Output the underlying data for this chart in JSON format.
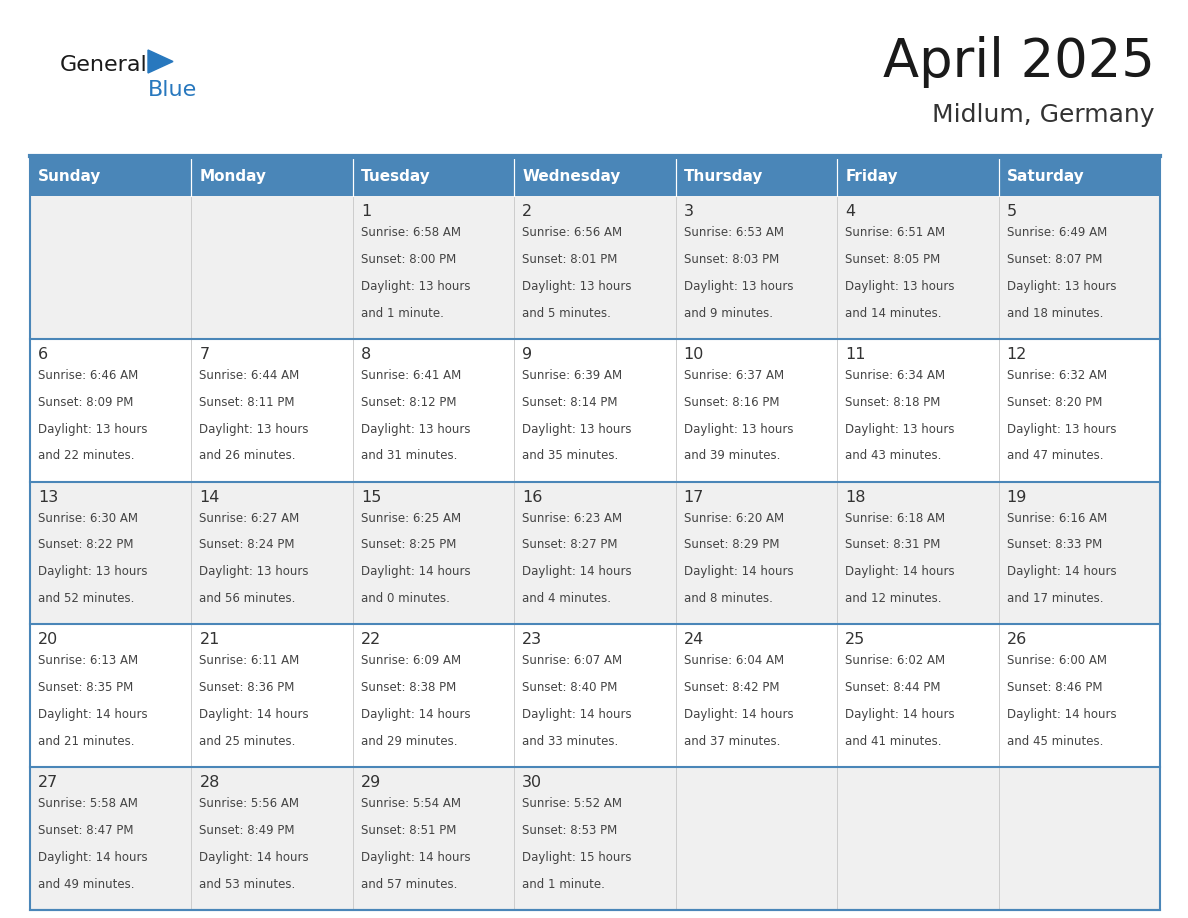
{
  "title": "April 2025",
  "subtitle": "Midlum, Germany",
  "days_of_week": [
    "Sunday",
    "Monday",
    "Tuesday",
    "Wednesday",
    "Thursday",
    "Friday",
    "Saturday"
  ],
  "header_bg": "#4a86b8",
  "header_text": "#ffffff",
  "cell_bg_odd": "#f0f0f0",
  "cell_bg_even": "#ffffff",
  "day_number_color": "#333333",
  "text_color": "#444444",
  "border_color": "#4a86b8",
  "logo_blue": "#2878be",
  "weeks": [
    [
      {
        "day": null,
        "lines": null
      },
      {
        "day": null,
        "lines": null
      },
      {
        "day": "1",
        "lines": [
          "Sunrise: 6:58 AM",
          "Sunset: 8:00 PM",
          "Daylight: 13 hours",
          "and 1 minute."
        ]
      },
      {
        "day": "2",
        "lines": [
          "Sunrise: 6:56 AM",
          "Sunset: 8:01 PM",
          "Daylight: 13 hours",
          "and 5 minutes."
        ]
      },
      {
        "day": "3",
        "lines": [
          "Sunrise: 6:53 AM",
          "Sunset: 8:03 PM",
          "Daylight: 13 hours",
          "and 9 minutes."
        ]
      },
      {
        "day": "4",
        "lines": [
          "Sunrise: 6:51 AM",
          "Sunset: 8:05 PM",
          "Daylight: 13 hours",
          "and 14 minutes."
        ]
      },
      {
        "day": "5",
        "lines": [
          "Sunrise: 6:49 AM",
          "Sunset: 8:07 PM",
          "Daylight: 13 hours",
          "and 18 minutes."
        ]
      }
    ],
    [
      {
        "day": "6",
        "lines": [
          "Sunrise: 6:46 AM",
          "Sunset: 8:09 PM",
          "Daylight: 13 hours",
          "and 22 minutes."
        ]
      },
      {
        "day": "7",
        "lines": [
          "Sunrise: 6:44 AM",
          "Sunset: 8:11 PM",
          "Daylight: 13 hours",
          "and 26 minutes."
        ]
      },
      {
        "day": "8",
        "lines": [
          "Sunrise: 6:41 AM",
          "Sunset: 8:12 PM",
          "Daylight: 13 hours",
          "and 31 minutes."
        ]
      },
      {
        "day": "9",
        "lines": [
          "Sunrise: 6:39 AM",
          "Sunset: 8:14 PM",
          "Daylight: 13 hours",
          "and 35 minutes."
        ]
      },
      {
        "day": "10",
        "lines": [
          "Sunrise: 6:37 AM",
          "Sunset: 8:16 PM",
          "Daylight: 13 hours",
          "and 39 minutes."
        ]
      },
      {
        "day": "11",
        "lines": [
          "Sunrise: 6:34 AM",
          "Sunset: 8:18 PM",
          "Daylight: 13 hours",
          "and 43 minutes."
        ]
      },
      {
        "day": "12",
        "lines": [
          "Sunrise: 6:32 AM",
          "Sunset: 8:20 PM",
          "Daylight: 13 hours",
          "and 47 minutes."
        ]
      }
    ],
    [
      {
        "day": "13",
        "lines": [
          "Sunrise: 6:30 AM",
          "Sunset: 8:22 PM",
          "Daylight: 13 hours",
          "and 52 minutes."
        ]
      },
      {
        "day": "14",
        "lines": [
          "Sunrise: 6:27 AM",
          "Sunset: 8:24 PM",
          "Daylight: 13 hours",
          "and 56 minutes."
        ]
      },
      {
        "day": "15",
        "lines": [
          "Sunrise: 6:25 AM",
          "Sunset: 8:25 PM",
          "Daylight: 14 hours",
          "and 0 minutes."
        ]
      },
      {
        "day": "16",
        "lines": [
          "Sunrise: 6:23 AM",
          "Sunset: 8:27 PM",
          "Daylight: 14 hours",
          "and 4 minutes."
        ]
      },
      {
        "day": "17",
        "lines": [
          "Sunrise: 6:20 AM",
          "Sunset: 8:29 PM",
          "Daylight: 14 hours",
          "and 8 minutes."
        ]
      },
      {
        "day": "18",
        "lines": [
          "Sunrise: 6:18 AM",
          "Sunset: 8:31 PM",
          "Daylight: 14 hours",
          "and 12 minutes."
        ]
      },
      {
        "day": "19",
        "lines": [
          "Sunrise: 6:16 AM",
          "Sunset: 8:33 PM",
          "Daylight: 14 hours",
          "and 17 minutes."
        ]
      }
    ],
    [
      {
        "day": "20",
        "lines": [
          "Sunrise: 6:13 AM",
          "Sunset: 8:35 PM",
          "Daylight: 14 hours",
          "and 21 minutes."
        ]
      },
      {
        "day": "21",
        "lines": [
          "Sunrise: 6:11 AM",
          "Sunset: 8:36 PM",
          "Daylight: 14 hours",
          "and 25 minutes."
        ]
      },
      {
        "day": "22",
        "lines": [
          "Sunrise: 6:09 AM",
          "Sunset: 8:38 PM",
          "Daylight: 14 hours",
          "and 29 minutes."
        ]
      },
      {
        "day": "23",
        "lines": [
          "Sunrise: 6:07 AM",
          "Sunset: 8:40 PM",
          "Daylight: 14 hours",
          "and 33 minutes."
        ]
      },
      {
        "day": "24",
        "lines": [
          "Sunrise: 6:04 AM",
          "Sunset: 8:42 PM",
          "Daylight: 14 hours",
          "and 37 minutes."
        ]
      },
      {
        "day": "25",
        "lines": [
          "Sunrise: 6:02 AM",
          "Sunset: 8:44 PM",
          "Daylight: 14 hours",
          "and 41 minutes."
        ]
      },
      {
        "day": "26",
        "lines": [
          "Sunrise: 6:00 AM",
          "Sunset: 8:46 PM",
          "Daylight: 14 hours",
          "and 45 minutes."
        ]
      }
    ],
    [
      {
        "day": "27",
        "lines": [
          "Sunrise: 5:58 AM",
          "Sunset: 8:47 PM",
          "Daylight: 14 hours",
          "and 49 minutes."
        ]
      },
      {
        "day": "28",
        "lines": [
          "Sunrise: 5:56 AM",
          "Sunset: 8:49 PM",
          "Daylight: 14 hours",
          "and 53 minutes."
        ]
      },
      {
        "day": "29",
        "lines": [
          "Sunrise: 5:54 AM",
          "Sunset: 8:51 PM",
          "Daylight: 14 hours",
          "and 57 minutes."
        ]
      },
      {
        "day": "30",
        "lines": [
          "Sunrise: 5:52 AM",
          "Sunset: 8:53 PM",
          "Daylight: 15 hours",
          "and 1 minute."
        ]
      },
      {
        "day": null,
        "lines": null
      },
      {
        "day": null,
        "lines": null
      },
      {
        "day": null,
        "lines": null
      }
    ]
  ]
}
